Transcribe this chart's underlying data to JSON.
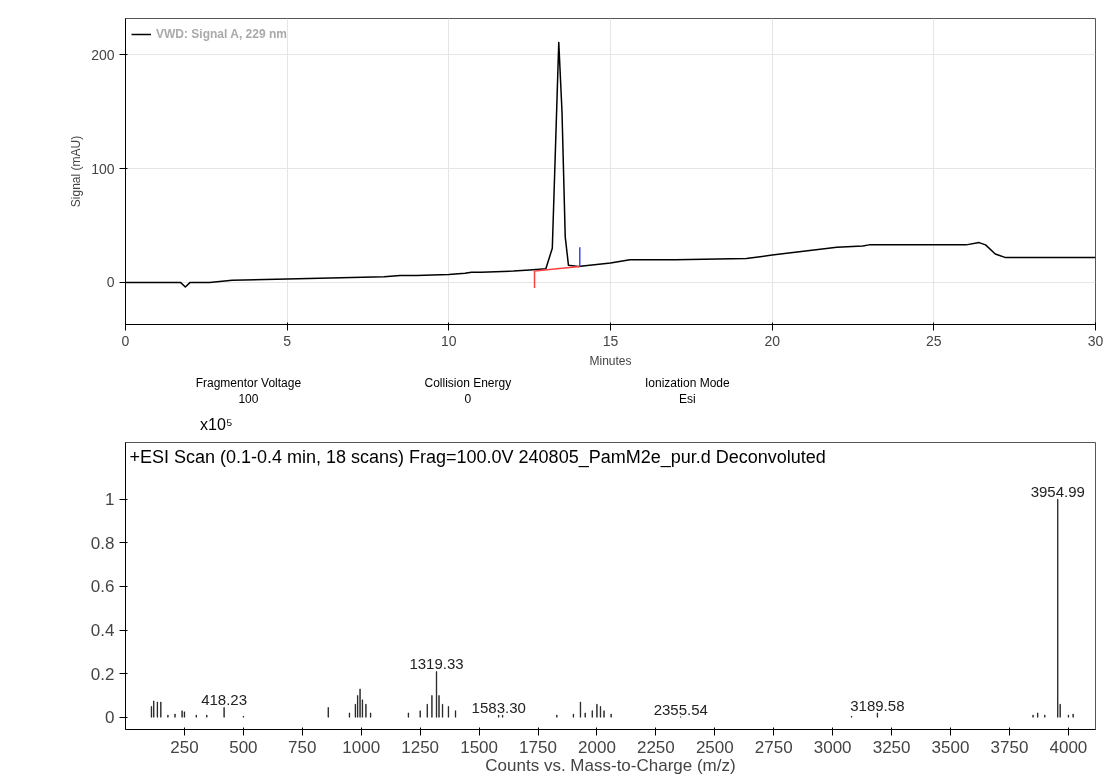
{
  "chart_data": [
    {
      "type": "line",
      "xlabel": "Minutes",
      "ylabel": "Signal (mAU)",
      "xlim": [
        0,
        30
      ],
      "ylim": [
        -37,
        232
      ],
      "xticks": [
        0,
        5,
        10,
        15,
        20,
        25,
        30
      ],
      "yticks": [
        0,
        100,
        200
      ],
      "grid": true,
      "legend": "top left",
      "series": [
        {
          "name": "VWD: Signal A, 229 nm",
          "color": "#000000",
          "x": [
            0,
            1.7,
            1.85,
            2.0,
            2.6,
            3.3,
            5,
            8,
            8.5,
            9,
            10,
            10.5,
            10.7,
            11,
            12,
            12.5,
            13.0,
            13.2,
            13.3,
            13.4,
            13.5,
            13.6,
            13.7,
            14,
            15,
            15.6,
            17,
            19.2,
            20,
            22,
            22.8,
            23,
            26,
            26.4,
            26.6,
            26.9,
            27.2,
            28,
            30
          ],
          "values": [
            0,
            0,
            -4,
            0,
            0,
            2,
            3,
            5,
            6,
            6,
            7,
            8,
            9,
            9,
            10,
            11,
            12,
            30,
            120,
            211,
            150,
            40,
            15,
            14,
            17,
            20,
            20,
            21,
            24,
            31,
            32,
            33,
            33,
            35,
            33,
            25,
            22,
            22,
            22
          ]
        },
        {
          "color": "#ff4040",
          "x": [
            12.65,
            14.05
          ],
          "values": [
            10,
            14
          ]
        },
        {
          "color": "#ff4040",
          "x": [
            12.65,
            12.65
          ],
          "values": [
            -5,
            10
          ]
        },
        {
          "color": "#4040ff",
          "x": [
            14.05,
            14.05
          ],
          "values": [
            14,
            31
          ]
        }
      ]
    },
    {
      "type": "bar",
      "title": "+ESI Scan (0.1-0.4 min, 18 scans) Frag=100.0V 240805_PamM2e_pur.d  Deconvoluted",
      "xlabel": "Counts vs. Mass-to-Charge (m/z)",
      "ylabel": "x10⁵",
      "annotations": [
        "Fragmentor Voltage\n100",
        "Collision Energy\n0",
        "Ionization Mode\nEsi",
        {
          "text": "418.23",
          "x": 418.23,
          "y": 0.045
        },
        {
          "text": "1319.33",
          "x": 1319.33,
          "y": 0.21
        },
        {
          "text": "1583.30",
          "x": 1583.3,
          "y": 0.01
        },
        {
          "text": "2355.54",
          "x": 2355.54,
          "y": 0.002
        },
        {
          "text": "3189.58",
          "x": 3189.58,
          "y": 0.02
        },
        {
          "text": "3954.99",
          "x": 3954.99,
          "y": 1.0
        }
      ],
      "xlim": [
        0,
        4115
      ],
      "ylim": [
        -0.056,
        1.26
      ],
      "xticks": [
        250,
        500,
        750,
        1000,
        1250,
        1500,
        1750,
        2000,
        2250,
        2500,
        2750,
        3000,
        3250,
        3500,
        3750,
        4000
      ],
      "yticks": [
        0,
        {
          "value": 0.2,
          "label": "0.2"
        },
        {
          "value": 0.4,
          "label": "0.4"
        },
        {
          "value": 0.6,
          "label": "0.6"
        },
        {
          "value": 0.8,
          "label": "0.8"
        },
        1
      ],
      "series": [
        {
          "color": "#000000",
          "x": [
            110,
            120,
            135,
            150,
            180,
            210,
            240,
            250,
            300,
            345,
            418.23,
            500,
            860,
            950,
            975,
            985,
            995,
            1005,
            1020,
            1040,
            1200,
            1250,
            1280,
            1300,
            1319.33,
            1330,
            1345,
            1370,
            1400,
            1583.3,
            1600,
            1830,
            1900,
            1930,
            1950,
            1980,
            2000,
            2015,
            2030,
            2060,
            2355.54,
            3080,
            3189.58,
            3850,
            3870,
            3900,
            3954.99,
            3965,
            4000,
            4020
          ],
          "values": [
            0.05,
            0.075,
            0.07,
            0.07,
            0.01,
            0.015,
            0.03,
            0.025,
            0.01,
            0.01,
            0.045,
            0.005,
            0.045,
            0.02,
            0.06,
            0.1,
            0.13,
            0.08,
            0.06,
            0.02,
            0.02,
            0.03,
            0.06,
            0.1,
            0.21,
            0.1,
            0.06,
            0.05,
            0.03,
            0.01,
            0.01,
            0.01,
            0.015,
            0.07,
            0.02,
            0.03,
            0.06,
            0.05,
            0.03,
            0.015,
            0.002,
            0.005,
            0.02,
            0.01,
            0.02,
            0.01,
            1.0,
            0.06,
            0.01,
            0.015
          ]
        }
      ]
    }
  ]
}
